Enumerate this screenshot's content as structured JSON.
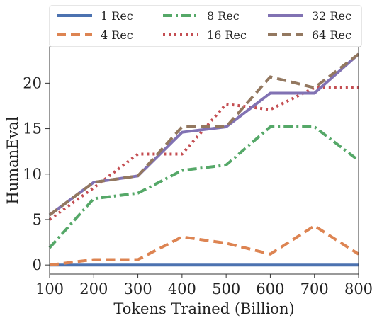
{
  "chart_data": {
    "type": "line",
    "title": "",
    "xlabel": "Tokens Trained (Billion)",
    "ylabel": "HumanEval",
    "x": [
      100,
      200,
      300,
      400,
      500,
      600,
      700,
      800
    ],
    "xlim": [
      100,
      800
    ],
    "ylim": [
      -1,
      24
    ],
    "xticks": [
      100,
      200,
      300,
      400,
      500,
      600,
      700,
      800
    ],
    "yticks": [
      0,
      5,
      10,
      15,
      20
    ],
    "grid": false,
    "legend_position": "top",
    "series": [
      {
        "name": "1 Rec",
        "color": "#4c72b0",
        "dash": "solid",
        "values": [
          0,
          0,
          0,
          0,
          0,
          0,
          0,
          0
        ]
      },
      {
        "name": "4 Rec",
        "color": "#dd8452",
        "dash": "dashed",
        "values": [
          0.0,
          0.6,
          0.6,
          3.1,
          2.4,
          1.2,
          4.3,
          1.2
        ]
      },
      {
        "name": "8 Rec",
        "color": "#55a868",
        "dash": "dashdot",
        "values": [
          1.9,
          7.3,
          7.9,
          10.4,
          11.0,
          15.2,
          15.2,
          11.5
        ]
      },
      {
        "name": "16 Rec",
        "color": "#c44e52",
        "dash": "dotted",
        "values": [
          5.0,
          8.5,
          12.2,
          12.2,
          17.7,
          17.1,
          19.5,
          19.5
        ]
      },
      {
        "name": "32 Rec",
        "color": "#8172b3",
        "dash": "solid",
        "values": [
          5.5,
          9.1,
          9.8,
          14.6,
          15.2,
          18.9,
          18.9,
          23.2
        ]
      },
      {
        "name": "64 Rec",
        "color": "#937860",
        "dash": "dashed",
        "values": [
          5.5,
          9.1,
          9.8,
          15.2,
          15.2,
          20.7,
          19.5,
          23.2
        ]
      }
    ]
  }
}
